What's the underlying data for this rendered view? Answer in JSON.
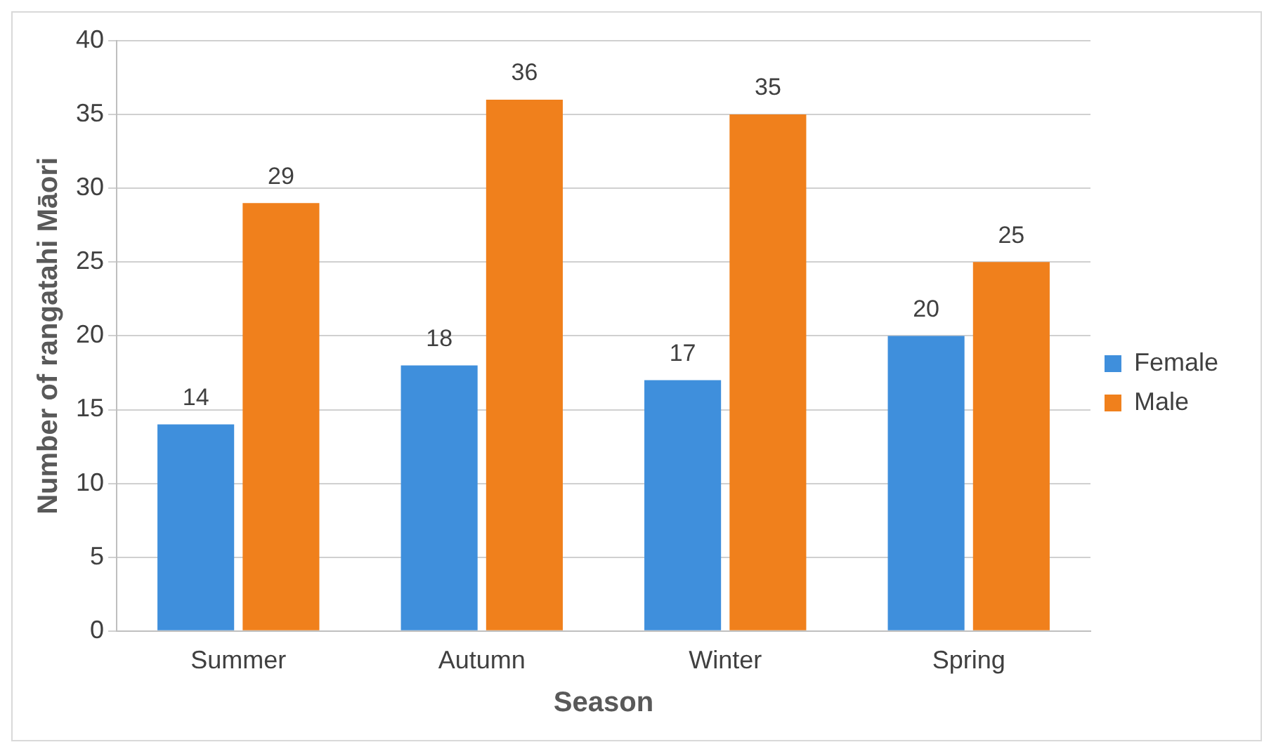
{
  "chart_data": {
    "type": "bar",
    "xlabel": "Season",
    "ylabel": "Number of rangatahi Māori",
    "categories": [
      "Summer",
      "Autumn",
      "Winter",
      "Spring"
    ],
    "series": [
      {
        "name": "Female",
        "color": "#3f8fdc",
        "values": [
          14,
          18,
          17,
          20
        ]
      },
      {
        "name": "Male",
        "color": "#f0801c",
        "values": [
          29,
          36,
          35,
          25
        ]
      }
    ],
    "ylim": [
      0,
      40
    ],
    "yticks": [
      0,
      5,
      10,
      15,
      20,
      25,
      30,
      35,
      40
    ],
    "grid": "y",
    "legend": "right",
    "data_labels": true
  }
}
